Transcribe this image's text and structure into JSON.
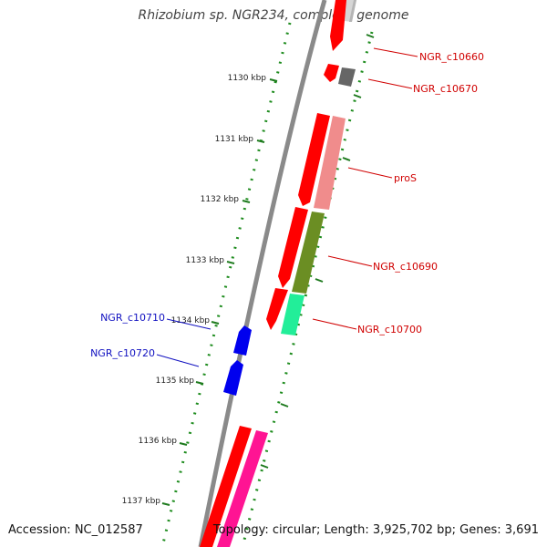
{
  "title": "Rhizobium sp. NGR234, complete genome",
  "footer": {
    "accession": "Accession: NC_012587",
    "topology": "Topology: circular; Length: 3,925,702 bp; Genes: 3,691"
  },
  "colors": {
    "backbone": "#8a8a8a",
    "ruler_minor": "#1e8c1e",
    "ruler_major": "#1e7a1e",
    "plus_label": "#d00000",
    "minus_label": "#1010c0",
    "cds_forward": "#ff0000",
    "cds_reverse": "#0000ff"
  },
  "ticks": [
    "1130 kbp",
    "1131 kbp",
    "1132 kbp",
    "1133 kbp",
    "1134 kbp",
    "1135 kbp",
    "1136 kbp",
    "1137 kbp"
  ],
  "gene_labels_plus": [
    "NGR_c10660",
    "NGR_c10670",
    "proS",
    "NGR_c10690",
    "NGR_c10700"
  ],
  "gene_labels_minus": [
    "NGR_c10710",
    "NGR_c10720"
  ]
}
